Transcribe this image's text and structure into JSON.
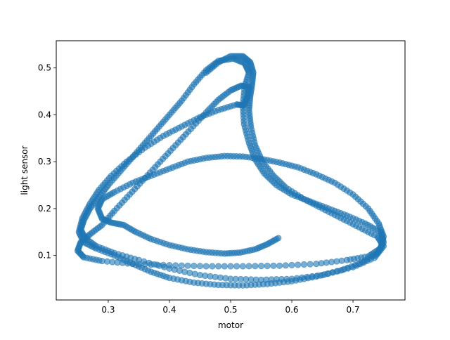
{
  "chart_data": {
    "type": "scatter",
    "title": "",
    "xlabel": "motor",
    "ylabel": "light sensor",
    "xlim": [
      0.215,
      0.785
    ],
    "ylim": [
      0.005,
      0.558
    ],
    "grid": false,
    "legend": "none",
    "x_ticks": [
      0.3,
      0.4,
      0.5,
      0.6,
      0.7
    ],
    "x_tick_labels": [
      "0.3",
      "0.4",
      "0.5",
      "0.6",
      "0.7"
    ],
    "y_ticks": [
      0.1,
      0.2,
      0.3,
      0.4,
      0.5
    ],
    "y_tick_labels": [
      "0.1",
      "0.2",
      "0.3",
      "0.4",
      "0.5"
    ],
    "marker_color": "#1f77b4",
    "marker_alpha": 0.6,
    "series": [
      {
        "values": [
          [
            0.578,
            0.137
          ],
          [
            0.56,
            0.124
          ],
          [
            0.54,
            0.113
          ],
          [
            0.515,
            0.106
          ],
          [
            0.49,
            0.104
          ],
          [
            0.46,
            0.107
          ],
          [
            0.43,
            0.113
          ],
          [
            0.4,
            0.122
          ],
          [
            0.37,
            0.135
          ],
          [
            0.345,
            0.15
          ],
          [
            0.325,
            0.165
          ],
          [
            0.305,
            0.17
          ],
          [
            0.29,
            0.178
          ],
          [
            0.283,
            0.2
          ],
          [
            0.29,
            0.22
          ],
          [
            0.31,
            0.235
          ],
          [
            0.34,
            0.255
          ],
          [
            0.37,
            0.27
          ],
          [
            0.4,
            0.285
          ],
          [
            0.43,
            0.3
          ],
          [
            0.46,
            0.308
          ],
          [
            0.49,
            0.312
          ],
          [
            0.52,
            0.311
          ],
          [
            0.55,
            0.306
          ],
          [
            0.58,
            0.298
          ],
          [
            0.61,
            0.288
          ],
          [
            0.64,
            0.273
          ],
          [
            0.67,
            0.255
          ],
          [
            0.7,
            0.23
          ],
          [
            0.725,
            0.2
          ],
          [
            0.742,
            0.168
          ],
          [
            0.75,
            0.14
          ],
          [
            0.745,
            0.115
          ],
          [
            0.725,
            0.098
          ],
          [
            0.69,
            0.09
          ],
          [
            0.64,
            0.082
          ],
          [
            0.58,
            0.078
          ],
          [
            0.52,
            0.077
          ],
          [
            0.46,
            0.077
          ],
          [
            0.4,
            0.079
          ],
          [
            0.34,
            0.082
          ],
          [
            0.29,
            0.088
          ],
          [
            0.26,
            0.096
          ],
          [
            0.25,
            0.11
          ],
          [
            0.255,
            0.128
          ],
          [
            0.27,
            0.145
          ],
          [
            0.29,
            0.165
          ],
          [
            0.31,
            0.195
          ],
          [
            0.335,
            0.23
          ],
          [
            0.36,
            0.265
          ],
          [
            0.385,
            0.3
          ],
          [
            0.41,
            0.335
          ],
          [
            0.435,
            0.37
          ],
          [
            0.46,
            0.405
          ],
          [
            0.48,
            0.432
          ],
          [
            0.5,
            0.452
          ],
          [
            0.517,
            0.462
          ],
          [
            0.53,
            0.46
          ],
          [
            0.528,
            0.44
          ],
          [
            0.522,
            0.42
          ],
          [
            0.51,
            0.422
          ],
          [
            0.48,
            0.41
          ],
          [
            0.45,
            0.395
          ],
          [
            0.42,
            0.375
          ],
          [
            0.39,
            0.355
          ],
          [
            0.36,
            0.33
          ],
          [
            0.33,
            0.3
          ],
          [
            0.305,
            0.27
          ],
          [
            0.285,
            0.24
          ],
          [
            0.27,
            0.21
          ],
          [
            0.258,
            0.18
          ],
          [
            0.252,
            0.15
          ],
          [
            0.26,
            0.128
          ],
          [
            0.28,
            0.115
          ],
          [
            0.31,
            0.1
          ],
          [
            0.34,
            0.082
          ],
          [
            0.37,
            0.065
          ],
          [
            0.4,
            0.052
          ],
          [
            0.44,
            0.042
          ],
          [
            0.48,
            0.037
          ],
          [
            0.52,
            0.036
          ],
          [
            0.56,
            0.039
          ],
          [
            0.6,
            0.045
          ],
          [
            0.64,
            0.055
          ],
          [
            0.68,
            0.068
          ],
          [
            0.715,
            0.085
          ],
          [
            0.74,
            0.105
          ],
          [
            0.75,
            0.128
          ],
          [
            0.745,
            0.15
          ],
          [
            0.72,
            0.168
          ],
          [
            0.69,
            0.185
          ],
          [
            0.66,
            0.2
          ],
          [
            0.63,
            0.215
          ],
          [
            0.6,
            0.23
          ],
          [
            0.575,
            0.25
          ],
          [
            0.555,
            0.275
          ],
          [
            0.54,
            0.305
          ],
          [
            0.53,
            0.34
          ],
          [
            0.522,
            0.38
          ],
          [
            0.52,
            0.42
          ],
          [
            0.523,
            0.46
          ],
          [
            0.53,
            0.49
          ],
          [
            0.523,
            0.51
          ],
          [
            0.505,
            0.52
          ],
          [
            0.48,
            0.515
          ],
          [
            0.46,
            0.495
          ],
          [
            0.44,
            0.465
          ],
          [
            0.42,
            0.43
          ],
          [
            0.4,
            0.4
          ],
          [
            0.38,
            0.37
          ],
          [
            0.36,
            0.34
          ],
          [
            0.34,
            0.31
          ],
          [
            0.32,
            0.28
          ],
          [
            0.3,
            0.25
          ],
          [
            0.285,
            0.225
          ],
          [
            0.27,
            0.2
          ],
          [
            0.26,
            0.175
          ],
          [
            0.255,
            0.155
          ],
          [
            0.262,
            0.137
          ],
          [
            0.28,
            0.12
          ],
          [
            0.31,
            0.105
          ],
          [
            0.35,
            0.09
          ],
          [
            0.4,
            0.072
          ],
          [
            0.45,
            0.058
          ],
          [
            0.5,
            0.05
          ],
          [
            0.55,
            0.048
          ],
          [
            0.6,
            0.05
          ],
          [
            0.65,
            0.058
          ],
          [
            0.7,
            0.075
          ],
          [
            0.735,
            0.095
          ],
          [
            0.75,
            0.12
          ],
          [
            0.74,
            0.14
          ],
          [
            0.71,
            0.16
          ],
          [
            0.68,
            0.18
          ],
          [
            0.65,
            0.2
          ],
          [
            0.62,
            0.22
          ],
          [
            0.59,
            0.245
          ],
          [
            0.57,
            0.27
          ],
          [
            0.552,
            0.3
          ],
          [
            0.54,
            0.335
          ],
          [
            0.533,
            0.375
          ],
          [
            0.53,
            0.41
          ],
          [
            0.532,
            0.44
          ],
          [
            0.535,
            0.465
          ],
          [
            0.537,
            0.49
          ],
          [
            0.532,
            0.512
          ],
          [
            0.52,
            0.525
          ],
          [
            0.5,
            0.525
          ],
          [
            0.48,
            0.512
          ],
          [
            0.46,
            0.49
          ]
        ]
      }
    ]
  }
}
